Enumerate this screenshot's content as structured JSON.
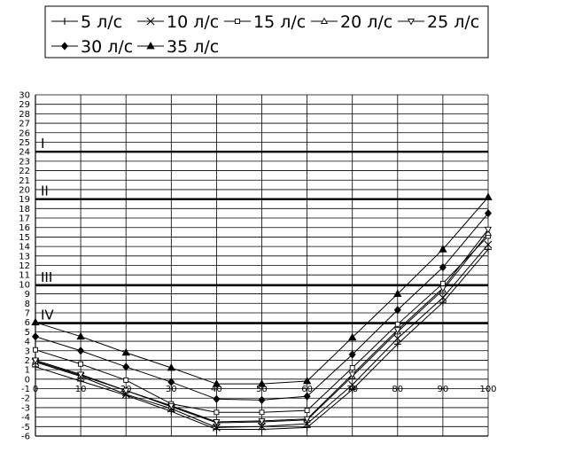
{
  "chart_data": {
    "type": "line",
    "x": [
      0,
      10,
      20,
      30,
      40,
      50,
      60,
      70,
      80,
      90,
      100
    ],
    "xlim": [
      0,
      100
    ],
    "ylim": [
      -6,
      30
    ],
    "x_ticks": [
      0,
      10,
      20,
      30,
      40,
      50,
      60,
      70,
      80,
      90,
      100
    ],
    "y_ticks": [
      -6,
      -5,
      -4,
      -3,
      -2,
      -1,
      0,
      1,
      2,
      3,
      4,
      5,
      6,
      7,
      8,
      9,
      10,
      11,
      12,
      13,
      14,
      15,
      16,
      17,
      18,
      19,
      20,
      21,
      22,
      23,
      24,
      25,
      26,
      27,
      28,
      29,
      30
    ],
    "grid": true,
    "legend_position": "top",
    "series": [
      {
        "name": "5 л/с",
        "marker": "plus",
        "values": [
          1.3,
          -0.2,
          -1.7,
          -3.4,
          -5.3,
          -5.3,
          -5.1,
          -1.1,
          3.7,
          8.1,
          13.7
        ]
      },
      {
        "name": "10 л/с",
        "marker": "cross",
        "values": [
          1.8,
          0.3,
          -1.6,
          -3.1,
          -5.1,
          -5.0,
          -4.7,
          -0.6,
          4.3,
          8.6,
          14.2
        ]
      },
      {
        "name": "15 л/с",
        "marker": "square-open",
        "values": [
          3.1,
          1.6,
          -0.1,
          -2.6,
          -3.5,
          -3.5,
          -3.3,
          1.2,
          5.8,
          10.1,
          15.1
        ]
      },
      {
        "name": "20 л/с",
        "marker": "triangle-open",
        "values": [
          1.9,
          0.4,
          -1.2,
          -2.9,
          -4.6,
          -4.5,
          -4.3,
          0.3,
          5.0,
          9.4,
          15.4
        ]
      },
      {
        "name": "25 л/с",
        "marker": "triangle-down-open",
        "values": [
          2.0,
          0.5,
          -1.2,
          -2.8,
          -4.5,
          -4.4,
          -4.2,
          0.5,
          5.2,
          9.6,
          15.8
        ]
      },
      {
        "name": "30 л/с",
        "marker": "diamond-filled",
        "values": [
          4.5,
          3.0,
          1.3,
          -0.3,
          -2.1,
          -2.2,
          -1.8,
          2.6,
          7.3,
          11.8,
          17.5
        ]
      },
      {
        "name": "35 л/с",
        "marker": "triangle-filled",
        "values": [
          6.0,
          4.5,
          2.8,
          1.2,
          -0.5,
          -0.5,
          -0.2,
          4.4,
          9.0,
          13.7,
          19.2
        ]
      }
    ],
    "reference_lines": [
      {
        "label": "I",
        "y": 24
      },
      {
        "label": "II",
        "y": 19
      },
      {
        "label": "III",
        "y": 9.9
      },
      {
        "label": "IV",
        "y": 5.9
      }
    ]
  }
}
